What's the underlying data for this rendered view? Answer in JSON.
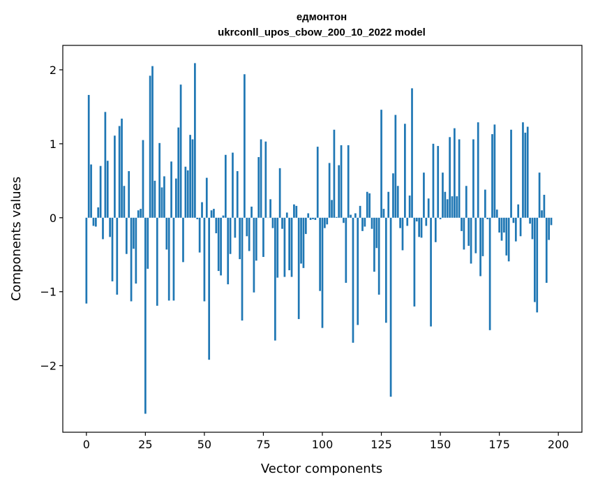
{
  "chart_data": {
    "type": "bar",
    "title_line1": "едмонтон",
    "title_line2": "ukrconll_upos_cbow_200_10_2022 model",
    "xlabel": "Vector components",
    "ylabel": "Components values",
    "xlim": [
      -10,
      210
    ],
    "ylim": [
      -2.9,
      2.33
    ],
    "xticks": [
      0,
      25,
      50,
      75,
      100,
      125,
      150,
      175,
      200
    ],
    "xtick_labels": [
      "0",
      "25",
      "50",
      "75",
      "100",
      "125",
      "150",
      "175",
      "200"
    ],
    "yticks": [
      -2,
      -1,
      0,
      1,
      2
    ],
    "ytick_labels": [
      "−2",
      "−1",
      "0",
      "1",
      "2"
    ],
    "values": [
      -1.16,
      1.66,
      0.72,
      -0.11,
      -0.12,
      0.14,
      0.7,
      -0.29,
      1.43,
      0.77,
      -0.26,
      -0.86,
      1.11,
      -1.04,
      1.24,
      1.34,
      0.43,
      -0.49,
      0.63,
      -1.13,
      -0.42,
      -0.89,
      0.1,
      0.12,
      1.05,
      -2.65,
      -0.69,
      1.92,
      2.05,
      0.5,
      -1.19,
      1.01,
      0.41,
      0.56,
      -0.43,
      -1.12,
      0.76,
      -1.12,
      0.53,
      1.22,
      1.8,
      -0.6,
      0.69,
      0.64,
      1.12,
      1.06,
      2.09,
      -0.02,
      -0.47,
      0.21,
      -1.13,
      0.54,
      -1.92,
      0.1,
      0.12,
      -0.21,
      -0.72,
      -0.78,
      0.03,
      0.85,
      -0.9,
      -0.49,
      0.88,
      -0.27,
      0.63,
      -0.56,
      -1.39,
      1.94,
      -0.25,
      -0.45,
      0.15,
      -1.01,
      -0.58,
      0.82,
      1.06,
      -0.53,
      1.03,
      0.0,
      0.25,
      -0.14,
      -1.66,
      -0.81,
      0.67,
      -0.15,
      -0.8,
      0.07,
      -0.71,
      -0.8,
      0.18,
      0.16,
      -1.37,
      -0.62,
      -0.68,
      -0.22,
      0.06,
      -0.03,
      -0.02,
      -0.03,
      0.96,
      -0.99,
      -1.49,
      -0.14,
      -0.09,
      0.74,
      0.24,
      1.19,
      0.01,
      0.71,
      0.98,
      -0.07,
      -0.88,
      0.98,
      0.04,
      -1.69,
      0.06,
      -1.45,
      0.16,
      -0.18,
      -0.12,
      0.35,
      0.33,
      -0.15,
      -0.73,
      -0.41,
      -1.04,
      1.46,
      0.12,
      -1.42,
      0.35,
      -2.42,
      0.6,
      1.39,
      0.43,
      -0.14,
      -0.44,
      1.27,
      -0.11,
      0.3,
      1.75,
      -1.2,
      -0.05,
      -0.26,
      -0.27,
      0.61,
      -0.11,
      0.26,
      -1.47,
      1.0,
      -0.33,
      0.97,
      -0.02,
      0.61,
      0.35,
      0.25,
      1.09,
      0.29,
      1.21,
      0.29,
      1.06,
      -0.18,
      -0.43,
      0.43,
      -0.38,
      -0.62,
      1.06,
      -0.48,
      1.29,
      -0.79,
      -0.52,
      0.38,
      -0.02,
      -1.52,
      1.13,
      1.26,
      0.11,
      -0.2,
      -0.31,
      -0.2,
      -0.51,
      -0.59,
      1.19,
      -0.07,
      -0.32,
      0.18,
      -0.25,
      1.29,
      1.15,
      1.23,
      -0.08,
      -0.29,
      -1.14,
      -1.28,
      0.61,
      0.1,
      0.31,
      -0.88,
      -0.3,
      -0.1
    ]
  }
}
